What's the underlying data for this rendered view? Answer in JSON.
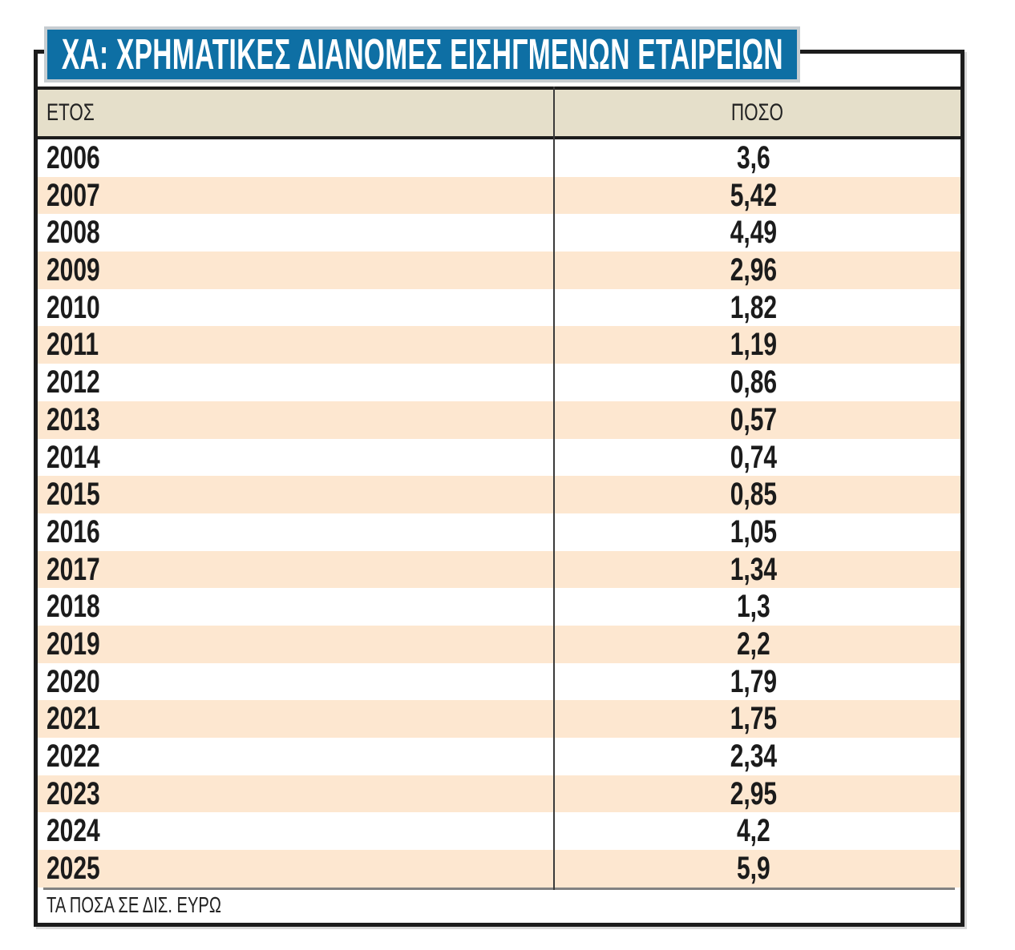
{
  "title": "ΧΑ: ΧΡΗΜΑΤΙΚΕΣ ΔΙΑΝΟΜΕΣ ΕΙΣΗΓΜΕΝΩΝ ΕΤΑΙΡΕΙΩΝ",
  "columns": {
    "year": "ΕΤΟΣ",
    "amount": "ΠΟΣΟ"
  },
  "rows": [
    {
      "year": "2006",
      "amount": "3,6"
    },
    {
      "year": "2007",
      "amount": "5,42"
    },
    {
      "year": "2008",
      "amount": "4,49"
    },
    {
      "year": "2009",
      "amount": "2,96"
    },
    {
      "year": "2010",
      "amount": "1,82"
    },
    {
      "year": "2011",
      "amount": "1,19"
    },
    {
      "year": "2012",
      "amount": "0,86"
    },
    {
      "year": "2013",
      "amount": "0,57"
    },
    {
      "year": "2014",
      "amount": "0,74"
    },
    {
      "year": "2015",
      "amount": "0,85"
    },
    {
      "year": "2016",
      "amount": "1,05"
    },
    {
      "year": "2017",
      "amount": "1,34"
    },
    {
      "year": "2018",
      "amount": "1,3"
    },
    {
      "year": "2019",
      "amount": "2,2"
    },
    {
      "year": "2020",
      "amount": "1,79"
    },
    {
      "year": "2021",
      "amount": "1,75"
    },
    {
      "year": "2022",
      "amount": "2,34"
    },
    {
      "year": "2023",
      "amount": "2,95"
    },
    {
      "year": "2024",
      "amount": "4,2"
    },
    {
      "year": "2025",
      "amount": "5,9"
    }
  ],
  "footnote": "ΤΑ ΠΟΣΑ ΣΕ ΔΙΣ. ΕΥΡΩ",
  "colors": {
    "banner_blue": "#0e6fa4",
    "banner_border": "#c7cdd1",
    "header_bg": "#e5dfca",
    "stripe_bg": "#fde7d0",
    "frame_black": "#1c1c1c",
    "separator_gray": "#828282",
    "text": "#1b1b1b",
    "title_text": "#ffffff"
  },
  "chart_data": {
    "type": "table",
    "title": "ΧΑ: ΧΡΗΜΑΤΙΚΕΣ ΔΙΑΝΟΜΕΣ ΕΙΣΗΓΜΕΝΩΝ ΕΤΑΙΡΕΙΩΝ",
    "columns": [
      "ΕΤΟΣ",
      "ΠΟΣΟ"
    ],
    "categories": [
      "2006",
      "2007",
      "2008",
      "2009",
      "2010",
      "2011",
      "2012",
      "2013",
      "2014",
      "2015",
      "2016",
      "2017",
      "2018",
      "2019",
      "2020",
      "2021",
      "2022",
      "2023",
      "2024",
      "2025"
    ],
    "values": [
      3.6,
      5.42,
      4.49,
      2.96,
      1.82,
      1.19,
      0.86,
      0.57,
      0.74,
      0.85,
      1.05,
      1.34,
      1.3,
      2.2,
      1.79,
      1.75,
      2.34,
      2.95,
      4.2,
      5.9
    ],
    "unit_note": "ΤΑ ΠΟΣΑ ΣΕ ΔΙΣ. ΕΥΡΩ",
    "decimal_separator": ","
  }
}
